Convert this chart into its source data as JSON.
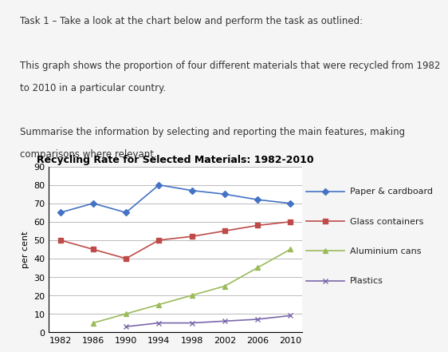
{
  "title": "Recycling Rate for Selected Materials: 1982-2010",
  "ylabel": "per cent",
  "years": [
    1982,
    1986,
    1990,
    1994,
    1998,
    2002,
    2006,
    2010
  ],
  "series": [
    {
      "label": "Paper & cardboard",
      "values": [
        65,
        70,
        65,
        80,
        77,
        75,
        72,
        70
      ],
      "color": "#4472C4",
      "marker": "D",
      "linestyle": "-"
    },
    {
      "label": "Glass containers",
      "values": [
        50,
        45,
        40,
        50,
        52,
        55,
        58,
        60
      ],
      "color": "#BE4B48",
      "marker": "s",
      "linestyle": "-"
    },
    {
      "label": "Aluminium cans",
      "values": [
        null,
        5,
        10,
        15,
        20,
        25,
        35,
        45
      ],
      "color": "#9BBB59",
      "marker": "^",
      "linestyle": "-"
    },
    {
      "label": "Plastics",
      "values": [
        null,
        null,
        3,
        5,
        5,
        6,
        7,
        9
      ],
      "color": "#7B68AA",
      "marker": "x",
      "linestyle": "-"
    }
  ],
  "ylim": [
    0,
    90
  ],
  "yticks": [
    0,
    10,
    20,
    30,
    40,
    50,
    60,
    70,
    80,
    90
  ],
  "background_color": "#f5f5f5",
  "chart_bg": "#ffffff",
  "grid_color": "#bbbbbb",
  "title_fontsize": 9,
  "axis_fontsize": 8,
  "legend_fontsize": 8,
  "text_lines": [
    "Task 1 – Take a look at the chart below and perform the task as outlined:",
    "",
    "This graph shows the proportion of four different materials that were recycled from 1982",
    "to 2010 in a particular country.",
    "",
    "Summarise the information by selecting and reporting the main features, making",
    "comparisons where relevant."
  ]
}
